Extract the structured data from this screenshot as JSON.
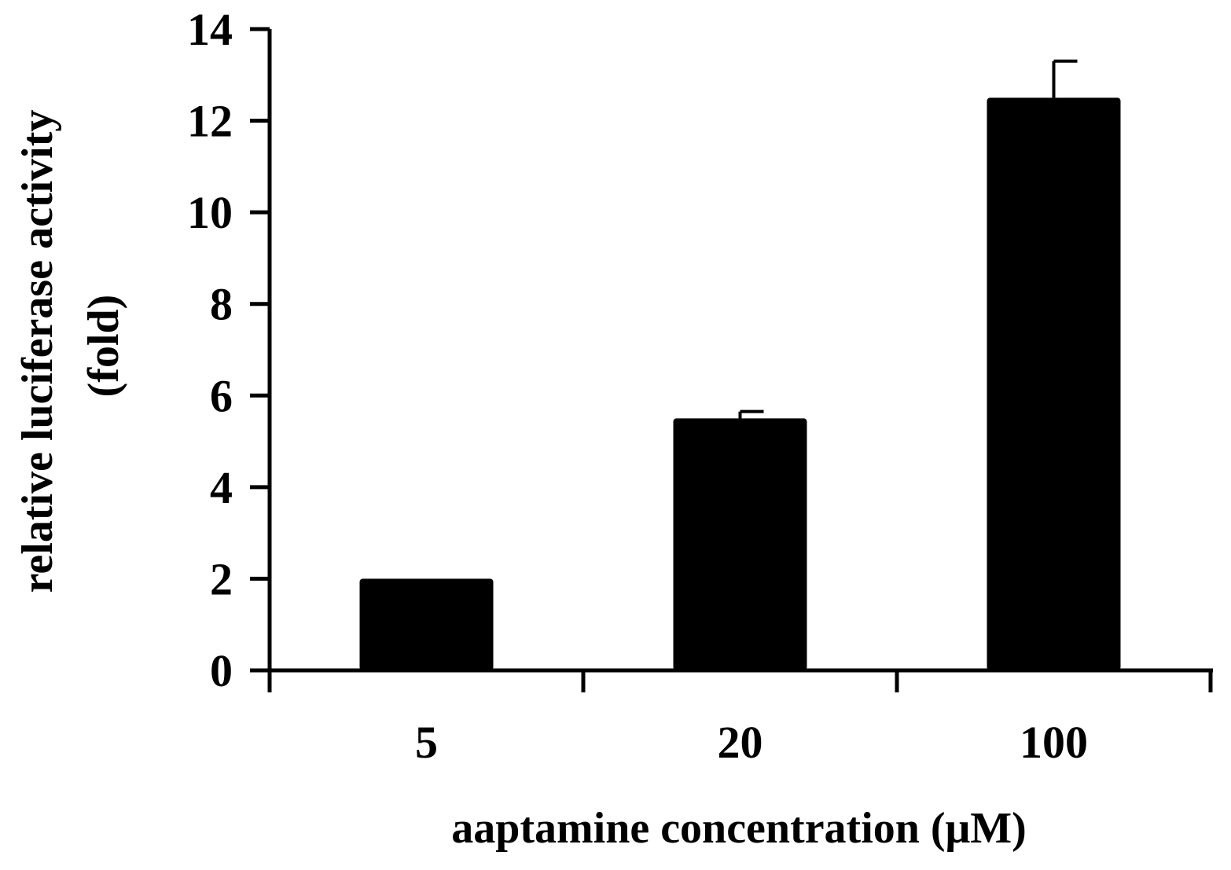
{
  "chart_data": {
    "type": "bar",
    "categories": [
      "5",
      "20",
      "100"
    ],
    "values": [
      2.0,
      5.5,
      12.5
    ],
    "error_bars": [
      0,
      0.15,
      0.8
    ],
    "xlabel": "aaptamine concentration (μM)",
    "ylabel_line1": "relative luciferase activity",
    "ylabel_line2": "(fold)",
    "ylim": [
      0,
      14
    ],
    "yticks": [
      "0",
      "2",
      "4",
      "6",
      "8",
      "10",
      "12",
      "14"
    ],
    "grid": false,
    "legend": "none",
    "bar_color": "#000000"
  }
}
